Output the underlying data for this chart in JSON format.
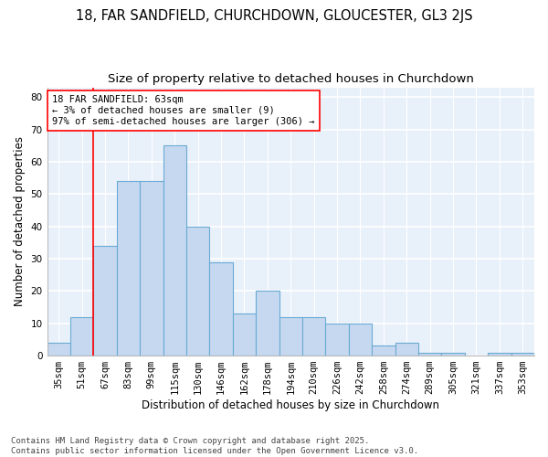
{
  "title_line1": "18, FAR SANDFIELD, CHURCHDOWN, GLOUCESTER, GL3 2JS",
  "title_line2": "Size of property relative to detached houses in Churchdown",
  "xlabel": "Distribution of detached houses by size in Churchdown",
  "ylabel": "Number of detached properties",
  "bar_labels": [
    "35sqm",
    "51sqm",
    "67sqm",
    "83sqm",
    "99sqm",
    "115sqm",
    "130sqm",
    "146sqm",
    "162sqm",
    "178sqm",
    "194sqm",
    "210sqm",
    "226sqm",
    "242sqm",
    "258sqm",
    "274sqm",
    "289sqm",
    "305sqm",
    "321sqm",
    "337sqm",
    "353sqm"
  ],
  "bar_values": [
    4,
    12,
    34,
    54,
    54,
    65,
    40,
    29,
    13,
    20,
    12,
    12,
    10,
    10,
    3,
    4,
    1,
    1,
    0,
    1,
    1
  ],
  "bar_color": "#c5d8f0",
  "bar_edge_color": "#6aaad4",
  "background_color": "#e8f0fa",
  "grid_color": "#ffffff",
  "ylim": [
    0,
    83
  ],
  "yticks": [
    0,
    10,
    20,
    30,
    40,
    50,
    60,
    70,
    80
  ],
  "annotation_box_text": "18 FAR SANDFIELD: 63sqm\n← 3% of detached houses are smaller (9)\n97% of semi-detached houses are larger (306) →",
  "red_line_bar_index": 1.5,
  "footer_text": "Contains HM Land Registry data © Crown copyright and database right 2025.\nContains public sector information licensed under the Open Government Licence v3.0.",
  "title_fontsize": 10.5,
  "subtitle_fontsize": 9.5,
  "axis_label_fontsize": 8.5,
  "tick_fontsize": 7.5,
  "annotation_fontsize": 7.5,
  "footer_fontsize": 6.5
}
